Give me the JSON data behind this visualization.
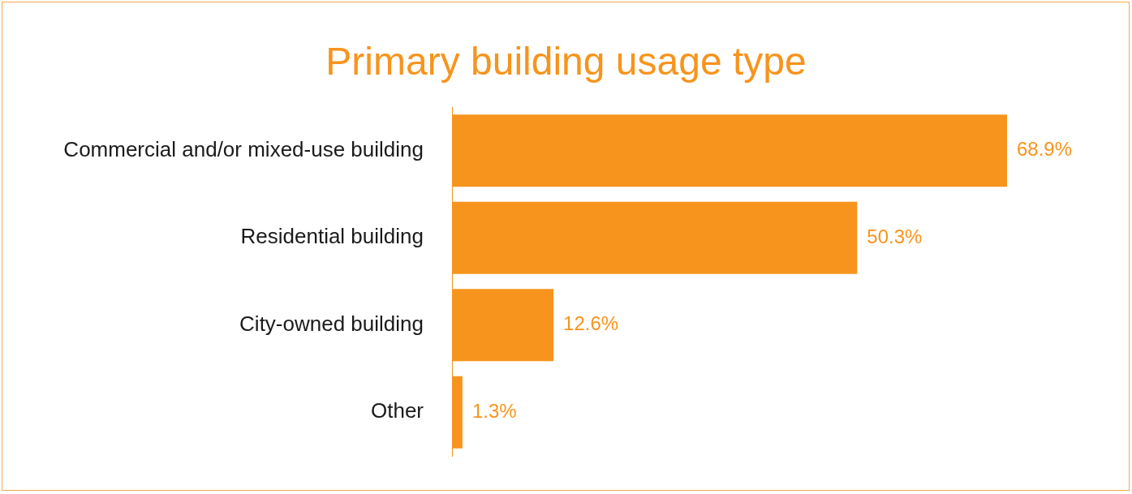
{
  "chart_data": {
    "type": "bar",
    "orientation": "horizontal",
    "title": "Primary building usage type",
    "categories": [
      "Commercial and/or mixed-use building",
      "Residential building",
      "City-owned building",
      "Other"
    ],
    "values": [
      68.9,
      50.3,
      12.6,
      1.3
    ],
    "color": "#f7941d",
    "value_labels": [
      "68.9%",
      "50.3%",
      "12.6%",
      "1.3%"
    ]
  }
}
